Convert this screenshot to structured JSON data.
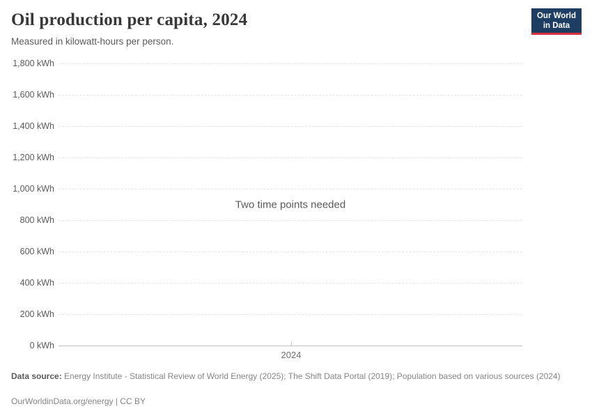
{
  "header": {
    "title": "Oil production per capita, 2024",
    "subtitle": "Measured in kilowatt-hours per person.",
    "logo": {
      "line1": "Our World",
      "line2": "in Data",
      "background_color": "#1d3d63",
      "accent_color": "#dc2f3e"
    }
  },
  "chart_data": {
    "type": "line",
    "title": "Oil production per capita, 2024",
    "subtitle": "Measured in kilowatt-hours per person.",
    "empty_message": "Two time points needed",
    "series": [],
    "x_ticks": [
      "2024"
    ],
    "y_ticks": [
      "0 kWh",
      "200 kWh",
      "400 kWh",
      "600 kWh",
      "800 kWh",
      "1,000 kWh",
      "1,200 kWh",
      "1,400 kWh",
      "1,600 kWh",
      "1,800 kWh"
    ],
    "ylim": [
      0,
      1800
    ],
    "y_step": 200,
    "grid": "horizontal-dashed",
    "legend": "none",
    "grid_color": "#e4e4e4",
    "axis_color": "#bdbdbd"
  },
  "footer": {
    "datasource_label": "Data source:",
    "datasource_text": " Energy Institute - Statistical Review of World Energy (2025); The Shift Data Portal (2019); Population based on various sources (2024)",
    "license": "OurWorldinData.org/energy | CC BY"
  }
}
